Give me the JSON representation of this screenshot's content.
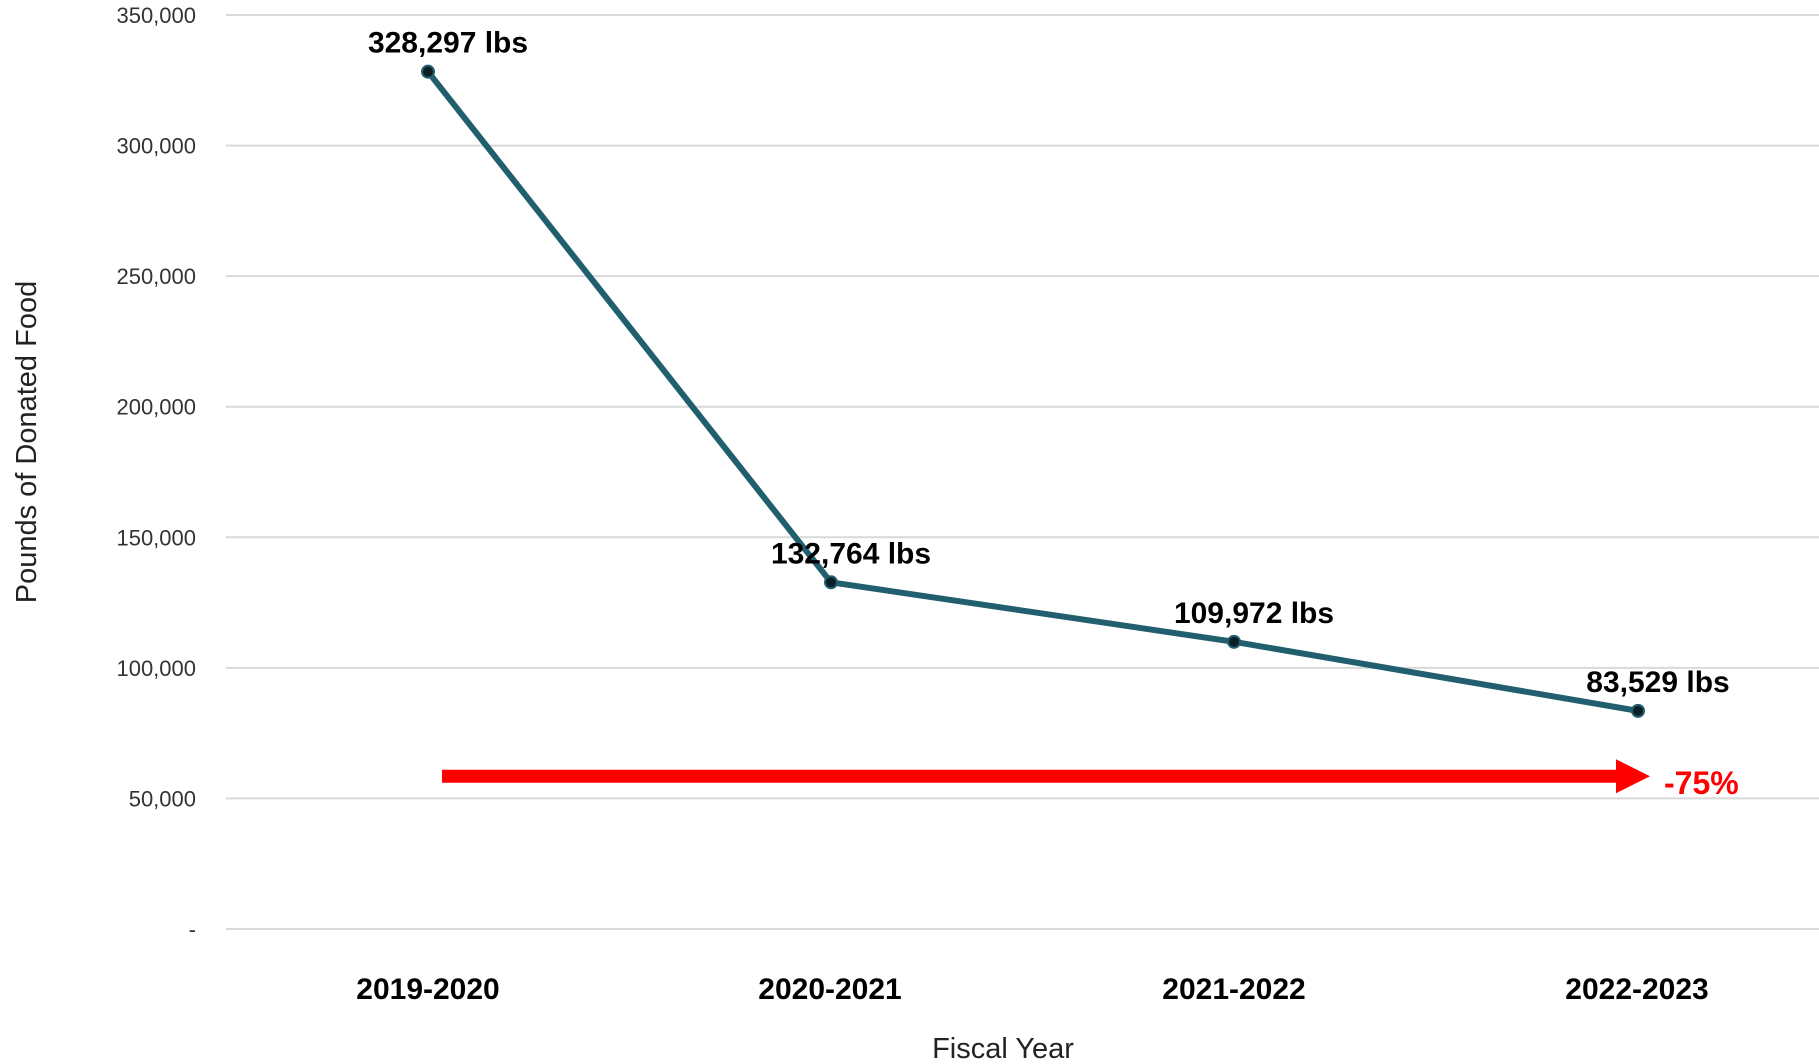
{
  "chart_data": {
    "type": "line",
    "categories": [
      "2019-2020",
      "2020-2021",
      "2021-2022",
      "2022-2023"
    ],
    "series": [
      {
        "values": [
          328297,
          132764,
          109972,
          83529
        ],
        "data_labels": [
          "328,297 lbs",
          "132,764 lbs",
          "109,972 lbs",
          "83,529 lbs"
        ],
        "color": "#215f6f"
      }
    ],
    "xlabel": "Fiscal Year",
    "ylabel": "Pounds of Donated Food",
    "ylim": [
      0,
      350000
    ],
    "yticks": [
      0,
      50000,
      100000,
      150000,
      200000,
      250000,
      300000,
      350000
    ],
    "ytick_labels": [
      "-",
      "50,000",
      "100,000",
      "150,000",
      "200,000",
      "250,000",
      "300,000",
      "350,000"
    ],
    "grid": true,
    "annotation": {
      "text": "-75%",
      "color": "#ff0000",
      "arrow_y": 58500
    }
  }
}
